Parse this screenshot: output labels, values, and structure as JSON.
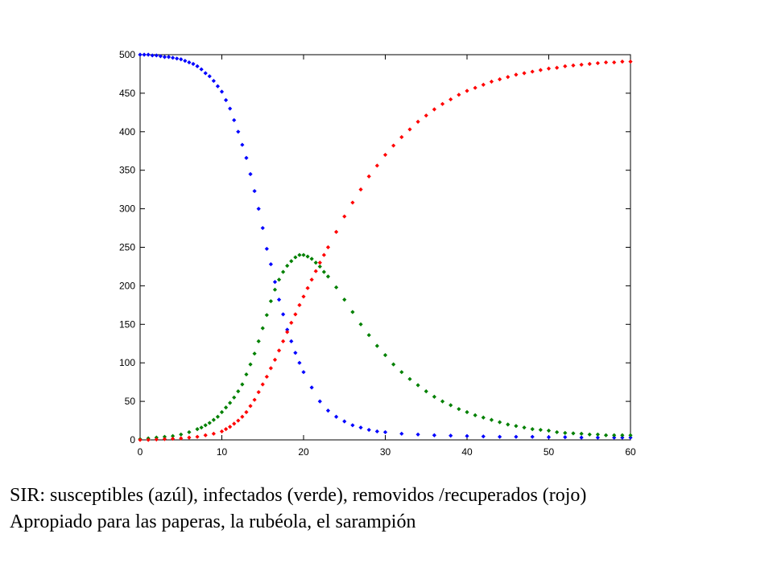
{
  "caption": {
    "line1": "SIR: susceptibles (azúl), infectados (verde), removidos /recuperados (rojo)",
    "line2": "Apropiado para las paperas, la rubéola, el sarampión"
  },
  "chart_data": {
    "type": "scatter",
    "title": "",
    "xlabel": "",
    "ylabel": "",
    "xlim": [
      0,
      60
    ],
    "ylim": [
      0,
      500
    ],
    "x_ticks": [
      0,
      10,
      20,
      30,
      40,
      50,
      60
    ],
    "y_ticks": [
      0,
      50,
      100,
      150,
      200,
      250,
      300,
      350,
      400,
      450,
      500
    ],
    "grid": false,
    "legend": "none",
    "series": [
      {
        "color": "#0000ff",
        "points": [
          [
            0,
            500
          ],
          [
            0.5,
            500
          ],
          [
            1,
            500
          ],
          [
            1.5,
            499
          ],
          [
            2,
            499
          ],
          [
            2.5,
            498
          ],
          [
            3,
            497
          ],
          [
            3.5,
            497
          ],
          [
            4,
            496
          ],
          [
            4.5,
            495
          ],
          [
            5,
            494
          ],
          [
            5.5,
            492
          ],
          [
            6,
            490
          ],
          [
            6.5,
            488
          ],
          [
            7,
            485
          ],
          [
            7.5,
            481
          ],
          [
            8,
            476
          ],
          [
            8.5,
            472
          ],
          [
            9,
            466
          ],
          [
            9.5,
            459
          ],
          [
            10,
            452
          ],
          [
            10.5,
            441
          ],
          [
            11,
            430
          ],
          [
            11.5,
            415
          ],
          [
            12,
            400
          ],
          [
            12.5,
            383
          ],
          [
            13,
            366
          ],
          [
            13.5,
            345
          ],
          [
            14,
            323
          ],
          [
            14.5,
            300
          ],
          [
            15,
            275
          ],
          [
            15.5,
            248
          ],
          [
            16,
            228
          ],
          [
            16.5,
            205
          ],
          [
            17,
            182
          ],
          [
            17.5,
            163
          ],
          [
            18,
            143
          ],
          [
            18.5,
            128
          ],
          [
            19,
            113
          ],
          [
            19.5,
            100
          ],
          [
            20,
            88
          ],
          [
            21,
            68
          ],
          [
            22,
            50
          ],
          [
            23,
            38
          ],
          [
            24,
            30
          ],
          [
            25,
            24
          ],
          [
            26,
            19
          ],
          [
            27,
            16
          ],
          [
            28,
            13
          ],
          [
            29,
            11
          ],
          [
            30,
            10
          ],
          [
            32,
            8
          ],
          [
            34,
            7
          ],
          [
            36,
            6
          ],
          [
            38,
            5.5
          ],
          [
            40,
            5
          ],
          [
            42,
            4.5
          ],
          [
            44,
            4
          ],
          [
            46,
            4
          ],
          [
            48,
            4
          ],
          [
            50,
            3.5
          ],
          [
            52,
            3.5
          ],
          [
            54,
            3
          ],
          [
            56,
            3
          ],
          [
            58,
            3
          ],
          [
            59,
            3
          ],
          [
            60,
            3
          ]
        ]
      },
      {
        "color": "#008000",
        "points": [
          [
            0,
            1
          ],
          [
            1,
            2
          ],
          [
            2,
            3
          ],
          [
            3,
            4
          ],
          [
            4,
            5
          ],
          [
            5,
            7
          ],
          [
            6,
            10
          ],
          [
            7,
            14
          ],
          [
            7.5,
            16
          ],
          [
            8,
            19
          ],
          [
            8.5,
            22
          ],
          [
            9,
            26
          ],
          [
            9.5,
            30
          ],
          [
            10,
            36
          ],
          [
            10.5,
            42
          ],
          [
            11,
            48
          ],
          [
            11.5,
            55
          ],
          [
            12,
            63
          ],
          [
            12.5,
            72
          ],
          [
            13,
            85
          ],
          [
            13.5,
            98
          ],
          [
            14,
            112
          ],
          [
            14.5,
            128
          ],
          [
            15,
            145
          ],
          [
            15.5,
            162
          ],
          [
            16,
            180
          ],
          [
            16.5,
            195
          ],
          [
            17,
            208
          ],
          [
            17.5,
            218
          ],
          [
            18,
            226
          ],
          [
            18.5,
            232
          ],
          [
            19,
            237
          ],
          [
            19.5,
            240
          ],
          [
            20,
            240
          ],
          [
            20.5,
            238
          ],
          [
            21,
            235
          ],
          [
            21.5,
            230
          ],
          [
            22,
            225
          ],
          [
            22.5,
            218
          ],
          [
            23,
            212
          ],
          [
            24,
            198
          ],
          [
            25,
            182
          ],
          [
            26,
            166
          ],
          [
            27,
            150
          ],
          [
            28,
            136
          ],
          [
            29,
            122
          ],
          [
            30,
            110
          ],
          [
            31,
            98
          ],
          [
            32,
            88
          ],
          [
            33,
            79
          ],
          [
            34,
            71
          ],
          [
            35,
            63
          ],
          [
            36,
            56
          ],
          [
            37,
            50
          ],
          [
            38,
            45
          ],
          [
            39,
            40
          ],
          [
            40,
            36
          ],
          [
            41,
            32
          ],
          [
            42,
            29
          ],
          [
            43,
            26
          ],
          [
            44,
            23
          ],
          [
            45,
            20
          ],
          [
            46,
            18
          ],
          [
            47,
            16
          ],
          [
            48,
            14
          ],
          [
            49,
            13
          ],
          [
            50,
            12
          ],
          [
            51,
            10
          ],
          [
            52,
            9
          ],
          [
            53,
            8.5
          ],
          [
            54,
            8
          ],
          [
            55,
            7
          ],
          [
            56,
            7
          ],
          [
            57,
            6
          ],
          [
            58,
            6
          ],
          [
            59,
            6
          ],
          [
            60,
            6
          ]
        ]
      },
      {
        "color": "#ff0000",
        "points": [
          [
            0,
            0
          ],
          [
            1,
            0
          ],
          [
            2,
            0.5
          ],
          [
            3,
            1
          ],
          [
            4,
            1.5
          ],
          [
            5,
            2
          ],
          [
            6,
            3
          ],
          [
            7,
            4
          ],
          [
            8,
            6
          ],
          [
            9,
            8
          ],
          [
            10,
            11
          ],
          [
            10.5,
            14
          ],
          [
            11,
            17
          ],
          [
            11.5,
            21
          ],
          [
            12,
            25
          ],
          [
            12.5,
            30
          ],
          [
            13,
            36
          ],
          [
            13.5,
            44
          ],
          [
            14,
            52
          ],
          [
            14.5,
            62
          ],
          [
            15,
            72
          ],
          [
            15.5,
            82
          ],
          [
            16,
            93
          ],
          [
            16.5,
            104
          ],
          [
            17,
            116
          ],
          [
            17.5,
            128
          ],
          [
            18,
            140
          ],
          [
            18.5,
            152
          ],
          [
            19,
            163
          ],
          [
            19.5,
            175
          ],
          [
            20,
            186
          ],
          [
            20.5,
            197
          ],
          [
            21,
            208
          ],
          [
            21.5,
            219
          ],
          [
            22,
            230
          ],
          [
            22.5,
            240
          ],
          [
            23,
            250
          ],
          [
            24,
            270
          ],
          [
            25,
            290
          ],
          [
            26,
            308
          ],
          [
            27,
            325
          ],
          [
            28,
            342
          ],
          [
            29,
            356
          ],
          [
            30,
            370
          ],
          [
            31,
            382
          ],
          [
            32,
            393
          ],
          [
            33,
            403
          ],
          [
            34,
            413
          ],
          [
            35,
            421
          ],
          [
            36,
            429
          ],
          [
            37,
            436
          ],
          [
            38,
            442
          ],
          [
            39,
            448
          ],
          [
            40,
            453
          ],
          [
            41,
            457
          ],
          [
            42,
            461
          ],
          [
            43,
            465
          ],
          [
            44,
            468
          ],
          [
            45,
            471
          ],
          [
            46,
            474
          ],
          [
            47,
            476
          ],
          [
            48,
            478
          ],
          [
            49,
            480
          ],
          [
            50,
            482
          ],
          [
            51,
            483
          ],
          [
            52,
            485
          ],
          [
            53,
            486
          ],
          [
            54,
            487
          ],
          [
            55,
            488
          ],
          [
            56,
            489
          ],
          [
            57,
            490
          ],
          [
            58,
            490
          ],
          [
            59,
            491
          ],
          [
            60,
            491
          ]
        ]
      }
    ]
  }
}
